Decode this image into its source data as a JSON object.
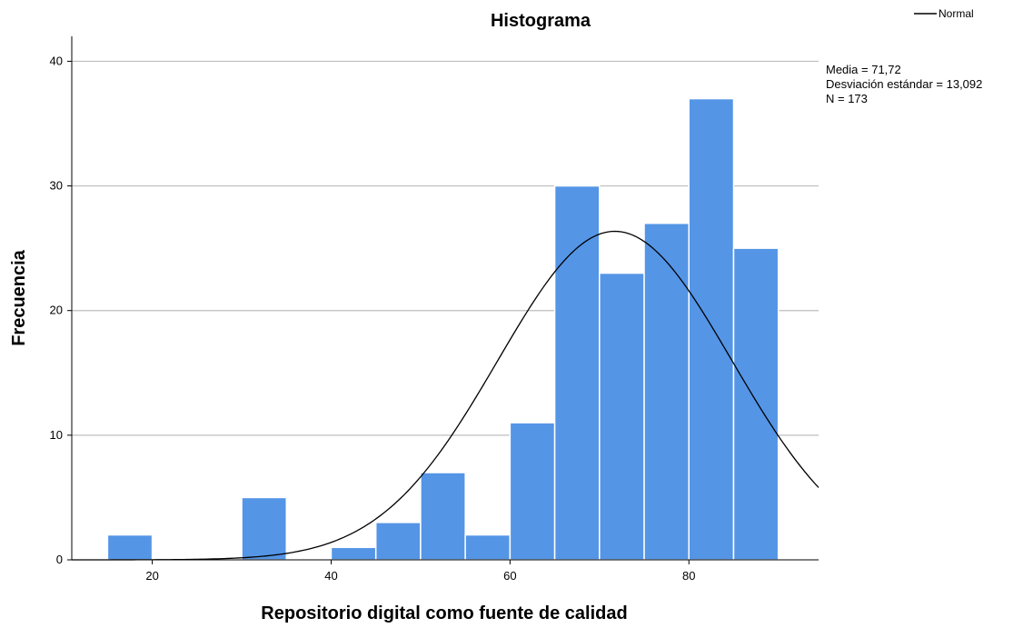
{
  "chart_data": {
    "type": "bar",
    "title": "Histograma",
    "xlabel": "Repositorio digital como fuente de calidad",
    "ylabel": "Frecuencia",
    "bin_width": 5,
    "bins": [
      {
        "start": 15,
        "end": 20,
        "count": 2
      },
      {
        "start": 20,
        "end": 25,
        "count": 0
      },
      {
        "start": 25,
        "end": 30,
        "count": 0
      },
      {
        "start": 30,
        "end": 35,
        "count": 5
      },
      {
        "start": 35,
        "end": 40,
        "count": 0
      },
      {
        "start": 40,
        "end": 45,
        "count": 1
      },
      {
        "start": 45,
        "end": 50,
        "count": 3
      },
      {
        "start": 50,
        "end": 55,
        "count": 7
      },
      {
        "start": 55,
        "end": 60,
        "count": 2
      },
      {
        "start": 60,
        "end": 65,
        "count": 11
      },
      {
        "start": 65,
        "end": 70,
        "count": 30
      },
      {
        "start": 70,
        "end": 75,
        "count": 23
      },
      {
        "start": 75,
        "end": 80,
        "count": 27
      },
      {
        "start": 80,
        "end": 85,
        "count": 37
      },
      {
        "start": 85,
        "end": 90,
        "count": 25
      }
    ],
    "xlim": [
      11,
      94.5
    ],
    "ylim": [
      0,
      42
    ],
    "x_ticks": [
      20,
      40,
      60,
      80
    ],
    "y_ticks": [
      0,
      10,
      20,
      30,
      40
    ],
    "grid": "horizontal",
    "bar_color": "#5495e6",
    "bar_edge_color": "#ffffff",
    "curve": {
      "name": "Normal",
      "mean": 71.72,
      "std": 13.092,
      "n": 173,
      "color": "#000000"
    },
    "legend": {
      "position": "top-right",
      "label": "Normal"
    },
    "stats": [
      "Media = 71,72",
      "Desviación estándar = 13,092",
      "N = 173"
    ]
  }
}
